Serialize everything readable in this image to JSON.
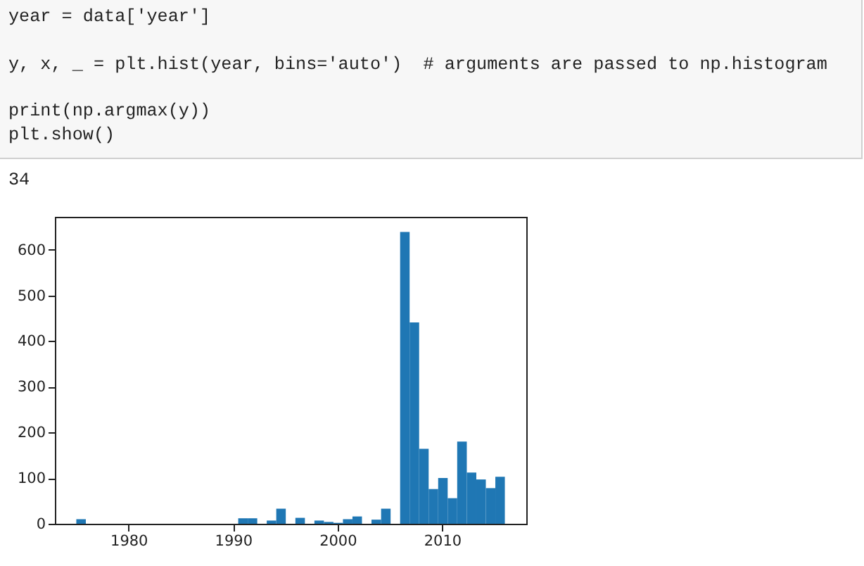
{
  "chart_data": {
    "type": "histogram",
    "annotations": [
      "year = data['year']",
      "y, x, _ = plt.hist(year, bins='auto')  # arguments are passed to np.histogram",
      "print(np.argmax(y))",
      "plt.show()",
      "34"
    ],
    "bins": [
      1975,
      1975.91,
      1976.82,
      1977.73,
      1978.64,
      1979.56,
      1980.47,
      1981.38,
      1982.29,
      1983.2,
      1984.11,
      1985.02,
      1985.93,
      1986.84,
      1987.76,
      1988.67,
      1989.58,
      1990.49,
      1991.4,
      1992.31,
      1993.22,
      1994.13,
      1995.04,
      1995.96,
      1996.87,
      1997.78,
      1998.69,
      1999.6,
      2000.51,
      2001.42,
      2002.33,
      2003.24,
      2004.16,
      2005.07,
      2005.98,
      2006.89,
      2007.8,
      2008.71,
      2009.62,
      2010.53,
      2011.44,
      2012.36,
      2013.27,
      2014.18,
      2015.09,
      2016
    ],
    "values": [
      10,
      0,
      0,
      0,
      0,
      0,
      0,
      0,
      0,
      0,
      0,
      0,
      0,
      0,
      0,
      0,
      0,
      12,
      12,
      0,
      7,
      33,
      0,
      13,
      0,
      7,
      4,
      2,
      10,
      16,
      0,
      9,
      33,
      0,
      639,
      441,
      164,
      76,
      100,
      56,
      180,
      112,
      97,
      78,
      103
    ],
    "color": "#1f77b4",
    "xlim": [
      1972.95,
      2018.05
    ],
    "xticks": [
      1980,
      1990,
      2000,
      2010
    ],
    "ylim": [
      0,
      672
    ],
    "yticks": [
      0,
      100,
      200,
      300,
      400,
      500,
      600
    ],
    "grid": false
  }
}
